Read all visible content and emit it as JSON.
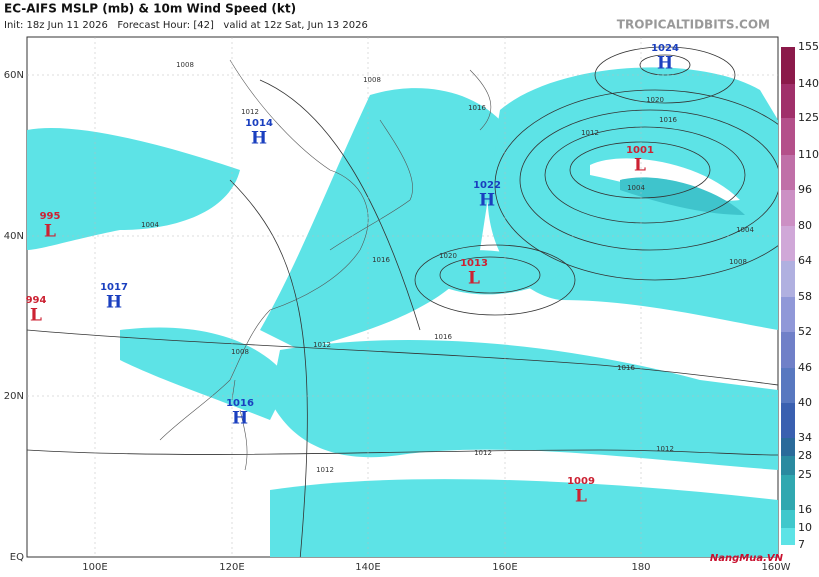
{
  "header": {
    "title": "EC-AIFS MSLP (mb) & 10m Wind Speed (kt)",
    "subtitle": "Init: 18z Jun 11 2026   Forecast Hour: [42]   valid at 12z Sat, Jun 13 2026",
    "site": "TROPICALTIDBITS.COM"
  },
  "lat_labels": [
    "60N",
    "40N",
    "20N",
    "EQ"
  ],
  "lon_labels": [
    "100E",
    "120E",
    "140E",
    "160E",
    "180",
    "160W"
  ],
  "colorbar_labels": [
    "155",
    "140",
    "125",
    "110",
    "96",
    "80",
    "64",
    "58",
    "52",
    "46",
    "40",
    "34",
    "28",
    "25",
    "16",
    "10",
    "7"
  ],
  "centers": [
    {
      "pressure": "1024",
      "type": "H"
    },
    {
      "pressure": "1014",
      "type": "H"
    },
    {
      "pressure": "1001",
      "type": "L"
    },
    {
      "pressure": "1022",
      "type": "H"
    },
    {
      "pressure": "995",
      "type": "L"
    },
    {
      "pressure": "1013",
      "type": "L"
    },
    {
      "pressure": "1017",
      "type": "H"
    },
    {
      "pressure": "994",
      "type": "L"
    },
    {
      "pressure": "1016",
      "type": "H"
    },
    {
      "pressure": "1009",
      "type": "L"
    }
  ],
  "isobar_labels": [
    "1008",
    "1008",
    "1012",
    "1016",
    "1020",
    "1012",
    "1016",
    "1004",
    "1004",
    "1008",
    "1016",
    "1020",
    "1016",
    "1012",
    "1016",
    "1012",
    "1012",
    "1012",
    "1008",
    "1004"
  ],
  "watermark": "NangMua.VN"
}
